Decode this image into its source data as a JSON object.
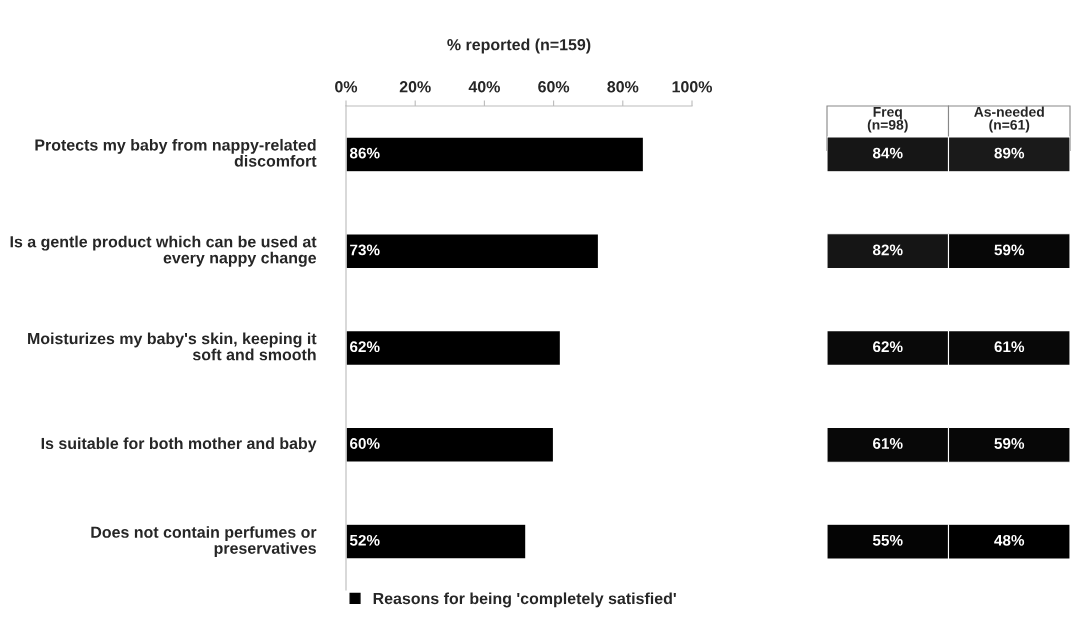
{
  "chart_data": [
    {
      "type": "bar",
      "orientation": "horizontal",
      "xlabel": "% reported (n=159)",
      "categories": [
        "Protects my baby from nappy-related discomfort",
        "Is a gentle product which can be used at every nappy change",
        "Moisturizes my baby's skin, keeping it soft and smooth",
        "Is suitable for both mother and baby",
        "Does not contain perfumes or preservatives"
      ],
      "series": [
        {
          "name": "Reasons for being 'completely satisfied'",
          "color": "#000000",
          "values": [
            86,
            73,
            62,
            60,
            52
          ],
          "value_labels": [
            "86%",
            "73%",
            "62%",
            "60%",
            "52%"
          ]
        }
      ],
      "xlim": [
        0,
        100
      ],
      "xticks": [
        {
          "value": 0,
          "label": "0%"
        },
        {
          "value": 20,
          "label": "20%"
        },
        {
          "value": 40,
          "label": "40%"
        },
        {
          "value": 60,
          "label": "60%"
        },
        {
          "value": 80,
          "label": "80%"
        },
        {
          "value": 100,
          "label": "100%"
        }
      ],
      "grid": false,
      "legend": "bottom"
    },
    {
      "type": "heatmap",
      "categories": [
        "Freq\n(n=98)",
        "As-needed\n(n=61)"
      ],
      "y_categories": [
        null,
        null,
        null,
        null,
        null
      ],
      "cells": [
        [
          84,
          89
        ],
        [
          82,
          59
        ],
        [
          62,
          61
        ],
        [
          61,
          59
        ],
        [
          55,
          48
        ]
      ],
      "cell_labels": [
        [
          "84%",
          "89%"
        ],
        [
          "82%",
          "59%"
        ],
        [
          "62%",
          "61%"
        ],
        [
          "61%",
          "59%"
        ],
        [
          "55%",
          "48%"
        ]
      ],
      "color": "#000000"
    }
  ]
}
